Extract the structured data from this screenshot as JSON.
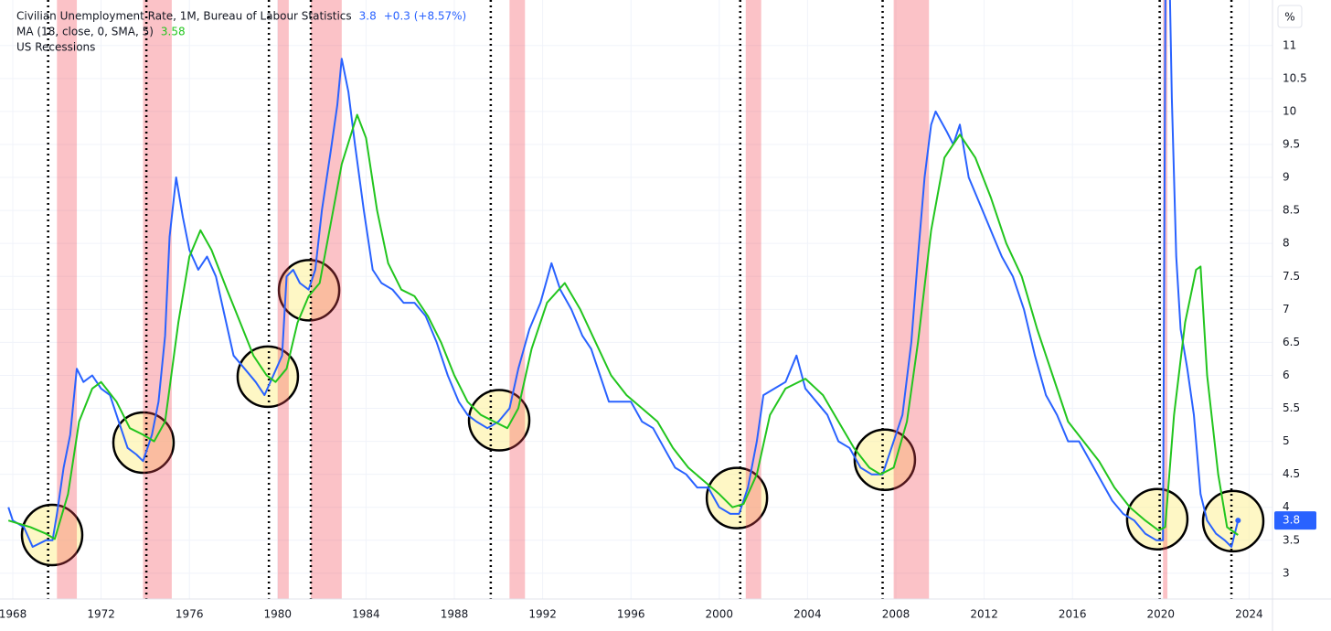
{
  "chart_data": {
    "type": "line",
    "title": "Civilian Unemployment Rate, 1M, Bureau of Labour Statistics",
    "change_label": "+0.3 (+8.57%)",
    "ma_label": "MA (18, close, 0, SMA, 5)",
    "recession_label": "US Recessions",
    "unit_label": "%",
    "xlim": [
      1967.42,
      2025.06
    ],
    "ylim": [
      2.61,
      11.69
    ],
    "xticks": [
      1968,
      1972,
      1976,
      1980,
      1984,
      1988,
      1992,
      1996,
      2000,
      2004,
      2008,
      2012,
      2016,
      2020,
      2024
    ],
    "yticks": [
      3,
      3.5,
      4,
      4.5,
      5,
      5.5,
      6,
      6.5,
      7,
      7.5,
      8,
      8.5,
      9,
      9.5,
      10,
      10.5,
      11
    ],
    "grid": true,
    "series": [
      {
        "name": "Civilian Unemployment Rate",
        "color": "#2962ff",
        "x": [
          1967.8,
          1968.0,
          1968.5,
          1968.9,
          1969.5,
          1969.8,
          1970.0,
          1970.3,
          1970.6,
          1970.9,
          1971.2,
          1971.6,
          1972.0,
          1972.4,
          1972.8,
          1973.2,
          1973.6,
          1973.9,
          1974.3,
          1974.6,
          1974.9,
          1975.1,
          1975.4,
          1975.7,
          1976.0,
          1976.4,
          1976.8,
          1977.2,
          1977.6,
          1978.0,
          1978.5,
          1979.0,
          1979.4,
          1979.8,
          1980.2,
          1980.4,
          1980.7,
          1981.0,
          1981.4,
          1981.7,
          1982.0,
          1982.4,
          1982.7,
          1982.9,
          1983.2,
          1983.5,
          1983.9,
          1984.3,
          1984.7,
          1985.2,
          1985.7,
          1986.2,
          1986.7,
          1987.2,
          1987.7,
          1988.2,
          1988.6,
          1989.0,
          1989.5,
          1990.0,
          1990.5,
          1990.9,
          1991.4,
          1991.9,
          1992.4,
          1992.8,
          1993.3,
          1993.8,
          1994.2,
          1994.6,
          1995.0,
          1995.5,
          1996.0,
          1996.5,
          1997.0,
          1997.5,
          1998.0,
          1998.5,
          1999.0,
          1999.5,
          2000.0,
          2000.5,
          2000.9,
          2001.3,
          2001.7,
          2002.0,
          2002.5,
          2003.0,
          2003.5,
          2003.9,
          2004.4,
          2004.9,
          2005.4,
          2005.9,
          2006.4,
          2006.9,
          2007.4,
          2007.9,
          2008.3,
          2008.7,
          2009.0,
          2009.3,
          2009.6,
          2009.8,
          2010.3,
          2010.6,
          2010.9,
          2011.3,
          2011.8,
          2012.3,
          2012.8,
          2013.3,
          2013.8,
          2014.3,
          2014.8,
          2015.3,
          2015.8,
          2016.3,
          2016.8,
          2017.3,
          2017.8,
          2018.3,
          2018.8,
          2019.3,
          2019.8,
          2020.1,
          2020.25,
          2020.5,
          2020.7,
          2020.9,
          2021.2,
          2021.5,
          2021.8,
          2022.1,
          2022.5,
          2022.9,
          2023.2,
          2023.5
        ],
        "values": [
          4.0,
          3.8,
          3.7,
          3.4,
          3.5,
          3.5,
          3.9,
          4.6,
          5.1,
          6.1,
          5.9,
          6.0,
          5.8,
          5.7,
          5.3,
          4.9,
          4.8,
          4.7,
          5.1,
          5.6,
          6.6,
          8.1,
          9.0,
          8.4,
          7.9,
          7.6,
          7.8,
          7.5,
          6.9,
          6.3,
          6.1,
          5.9,
          5.7,
          6.0,
          6.3,
          7.5,
          7.6,
          7.4,
          7.3,
          7.6,
          8.5,
          9.4,
          10.1,
          10.8,
          10.3,
          9.5,
          8.5,
          7.6,
          7.4,
          7.3,
          7.1,
          7.1,
          6.9,
          6.5,
          6.0,
          5.6,
          5.4,
          5.3,
          5.2,
          5.3,
          5.5,
          6.1,
          6.7,
          7.1,
          7.7,
          7.3,
          7.0,
          6.6,
          6.4,
          6.0,
          5.6,
          5.6,
          5.6,
          5.3,
          5.2,
          4.9,
          4.6,
          4.5,
          4.3,
          4.3,
          4.0,
          3.9,
          3.9,
          4.3,
          5.0,
          5.7,
          5.8,
          5.9,
          6.3,
          5.8,
          5.6,
          5.4,
          5.0,
          4.9,
          4.6,
          4.5,
          4.5,
          5.0,
          5.4,
          6.5,
          7.8,
          9.0,
          9.8,
          10.0,
          9.7,
          9.5,
          9.8,
          9.0,
          8.6,
          8.2,
          7.8,
          7.5,
          7.0,
          6.3,
          5.7,
          5.4,
          5.0,
          5.0,
          4.7,
          4.4,
          4.1,
          3.9,
          3.8,
          3.6,
          3.5,
          3.5,
          14.7,
          10.2,
          7.8,
          6.7,
          6.1,
          5.4,
          4.2,
          3.8,
          3.6,
          3.5,
          3.4,
          3.8
        ]
      },
      {
        "name": "MA",
        "color": "#22c51e",
        "x": [
          1967.8,
          1968.8,
          1969.5,
          1969.9,
          1970.5,
          1971.0,
          1971.6,
          1972.0,
          1972.7,
          1973.3,
          1973.9,
          1974.4,
          1974.9,
          1975.5,
          1976.0,
          1976.5,
          1977.0,
          1977.7,
          1978.3,
          1978.9,
          1979.5,
          1979.9,
          1980.4,
          1980.9,
          1981.4,
          1981.9,
          1982.4,
          1982.9,
          1983.6,
          1984.0,
          1984.5,
          1985.0,
          1985.6,
          1986.2,
          1986.8,
          1987.4,
          1988.0,
          1988.6,
          1989.2,
          1989.8,
          1990.4,
          1990.9,
          1991.5,
          1992.2,
          1993.0,
          1993.7,
          1994.4,
          1995.1,
          1995.8,
          1996.5,
          1997.2,
          1997.9,
          1998.6,
          1999.3,
          2000.0,
          2000.6,
          2001.1,
          2001.7,
          2002.3,
          2003.0,
          2003.9,
          2004.7,
          2005.4,
          2006.1,
          2006.8,
          2007.3,
          2007.9,
          2008.5,
          2009.0,
          2009.6,
          2010.2,
          2010.9,
          2011.6,
          2012.3,
          2013.0,
          2013.7,
          2014.4,
          2015.1,
          2015.8,
          2016.5,
          2017.2,
          2017.9,
          2018.6,
          2019.3,
          2019.9,
          2020.2,
          2020.6,
          2021.1,
          2021.6,
          2021.8,
          2022.1,
          2022.6,
          2023.0,
          2023.5
        ],
        "values": [
          3.8,
          3.7,
          3.6,
          3.52,
          4.2,
          5.3,
          5.8,
          5.9,
          5.6,
          5.2,
          5.1,
          5.0,
          5.3,
          6.8,
          7.8,
          8.2,
          7.9,
          7.3,
          6.8,
          6.3,
          6.0,
          5.9,
          6.1,
          6.8,
          7.2,
          7.4,
          8.3,
          9.2,
          9.95,
          9.6,
          8.5,
          7.7,
          7.3,
          7.2,
          6.9,
          6.5,
          6.0,
          5.6,
          5.4,
          5.3,
          5.2,
          5.5,
          6.4,
          7.1,
          7.4,
          7.0,
          6.5,
          6.0,
          5.7,
          5.5,
          5.3,
          4.9,
          4.6,
          4.4,
          4.2,
          4.0,
          4.05,
          4.5,
          5.4,
          5.8,
          5.95,
          5.7,
          5.3,
          4.9,
          4.6,
          4.5,
          4.6,
          5.3,
          6.5,
          8.2,
          9.3,
          9.65,
          9.3,
          8.7,
          8.0,
          7.5,
          6.7,
          6.0,
          5.3,
          5.0,
          4.7,
          4.3,
          4.0,
          3.8,
          3.65,
          3.7,
          5.4,
          6.8,
          7.6,
          7.65,
          6.0,
          4.5,
          3.7,
          3.58
        ]
      }
    ],
    "recessions": [
      [
        1970.0,
        1970.9
      ],
      [
        1973.9,
        1975.2
      ],
      [
        1980.0,
        1980.5
      ],
      [
        1981.5,
        1982.9
      ],
      [
        1990.5,
        1991.2
      ],
      [
        2001.2,
        2001.9
      ],
      [
        2007.9,
        2009.5
      ],
      [
        2020.1,
        2020.3
      ]
    ],
    "markers": [
      1969.6,
      1974.05,
      1979.6,
      1981.5,
      1989.65,
      2000.95,
      2007.4,
      2019.95,
      2023.2
    ],
    "highlights": [
      {
        "x": 1969.78,
        "y": 3.58
      },
      {
        "x": 1973.92,
        "y": 4.98
      },
      {
        "x": 1979.55,
        "y": 5.98
      },
      {
        "x": 1981.42,
        "y": 7.29
      },
      {
        "x": 1990.03,
        "y": 5.32
      },
      {
        "x": 2000.8,
        "y": 4.14
      },
      {
        "x": 2007.5,
        "y": 4.72
      },
      {
        "x": 2019.84,
        "y": 3.82
      },
      {
        "x": 2023.28,
        "y": 3.79
      }
    ]
  }
}
